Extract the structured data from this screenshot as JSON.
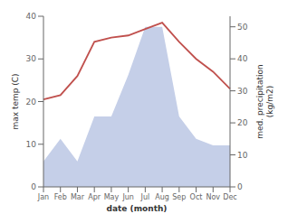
{
  "chart_data": {
    "type": "line",
    "xlabel": "date (month)",
    "ylabel": "max temp (C)",
    "y2label": "med. precipitation\n(kg/m2)",
    "categories": [
      "Jan",
      "Feb",
      "Mar",
      "Apr",
      "May",
      "Jun",
      "Jul",
      "Aug",
      "Sep",
      "Oct",
      "Nov",
      "Dec"
    ],
    "series": [
      {
        "type": "area",
        "color": "#c5cfe8",
        "axis": "y2",
        "values": [
          8,
          15,
          8,
          22,
          22,
          35,
          50,
          50,
          22,
          15,
          13,
          13
        ]
      },
      {
        "type": "line",
        "color": "#c0504d",
        "values": [
          20.5,
          21.5,
          26,
          34,
          35,
          35.5,
          37,
          38.5,
          34,
          30,
          27,
          23
        ]
      }
    ],
    "ylim": [
      0,
      40
    ],
    "yticks": [
      0,
      10,
      20,
      30,
      40
    ],
    "y2lim": [
      0,
      53.3
    ],
    "y2ticks": [
      0,
      10,
      20,
      30,
      40,
      50
    ],
    "grid": false
  }
}
